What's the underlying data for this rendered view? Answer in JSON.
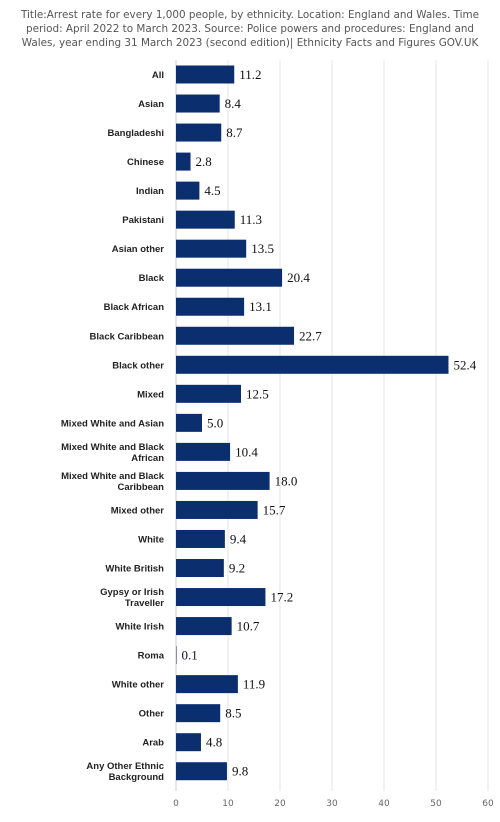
{
  "title": "Title:Arrest rate for every 1,000 people, by ethnicity. Location: England and Wales. Time period: April 2022 to March 2023. Source: Police powers and procedures: England and Wales, year ending 31 March 2023 (second edition)| Ethnicity Facts and Figures GOV.UK",
  "colors": {
    "bar": "#0b2e6f",
    "grid": "#e6e6e6",
    "axis": "#cccccc"
  },
  "chart_data": {
    "type": "bar",
    "orientation": "horizontal",
    "title": "",
    "xlabel": "",
    "ylabel": "",
    "xlim": [
      0,
      60
    ],
    "xticks": [
      0,
      10,
      20,
      30,
      40,
      50,
      60
    ],
    "grid": true,
    "categories": [
      "All",
      "Asian",
      "Bangladeshi",
      "Chinese",
      "Indian",
      "Pakistani",
      "Asian other",
      "Black",
      "Black African",
      "Black Caribbean",
      "Black other",
      "Mixed",
      "Mixed White and Asian",
      "Mixed White and Black African",
      "Mixed White and Black Caribbean",
      "Mixed other",
      "White",
      "White British",
      "Gypsy or Irish Traveller",
      "White Irish",
      "Roma",
      "White other",
      "Other",
      "Arab",
      "Any Other Ethnic Background"
    ],
    "category_lines": [
      [
        "All"
      ],
      [
        "Asian"
      ],
      [
        "Bangladeshi"
      ],
      [
        "Chinese"
      ],
      [
        "Indian"
      ],
      [
        "Pakistani"
      ],
      [
        "Asian other"
      ],
      [
        "Black"
      ],
      [
        "Black African"
      ],
      [
        "Black Caribbean"
      ],
      [
        "Black other"
      ],
      [
        "Mixed"
      ],
      [
        "Mixed White and Asian"
      ],
      [
        "Mixed White and Black",
        "African"
      ],
      [
        "Mixed White and Black",
        "Caribbean"
      ],
      [
        "Mixed other"
      ],
      [
        "White"
      ],
      [
        "White British"
      ],
      [
        "Gypsy or Irish",
        "Traveller"
      ],
      [
        "White Irish"
      ],
      [
        "Roma"
      ],
      [
        "White other"
      ],
      [
        "Other"
      ],
      [
        "Arab"
      ],
      [
        "Any Other Ethnic",
        "Background"
      ]
    ],
    "values": [
      11.2,
      8.4,
      8.7,
      2.8,
      4.5,
      11.3,
      13.5,
      20.4,
      13.1,
      22.7,
      52.4,
      12.5,
      5.0,
      10.4,
      18.0,
      15.7,
      9.4,
      9.2,
      17.2,
      10.7,
      0.1,
      11.9,
      8.5,
      4.8,
      9.8
    ],
    "value_labels": [
      "11.2",
      "8.4",
      "8.7",
      "2.8",
      "4.5",
      "11.3",
      "13.5",
      "20.4",
      "13.1",
      "22.7",
      "52.4",
      "12.5",
      "5.0",
      "10.4",
      "18.0",
      "15.7",
      "9.4",
      "9.2",
      "17.2",
      "10.7",
      "0.1",
      "11.9",
      "8.5",
      "4.8",
      "9.8"
    ]
  }
}
